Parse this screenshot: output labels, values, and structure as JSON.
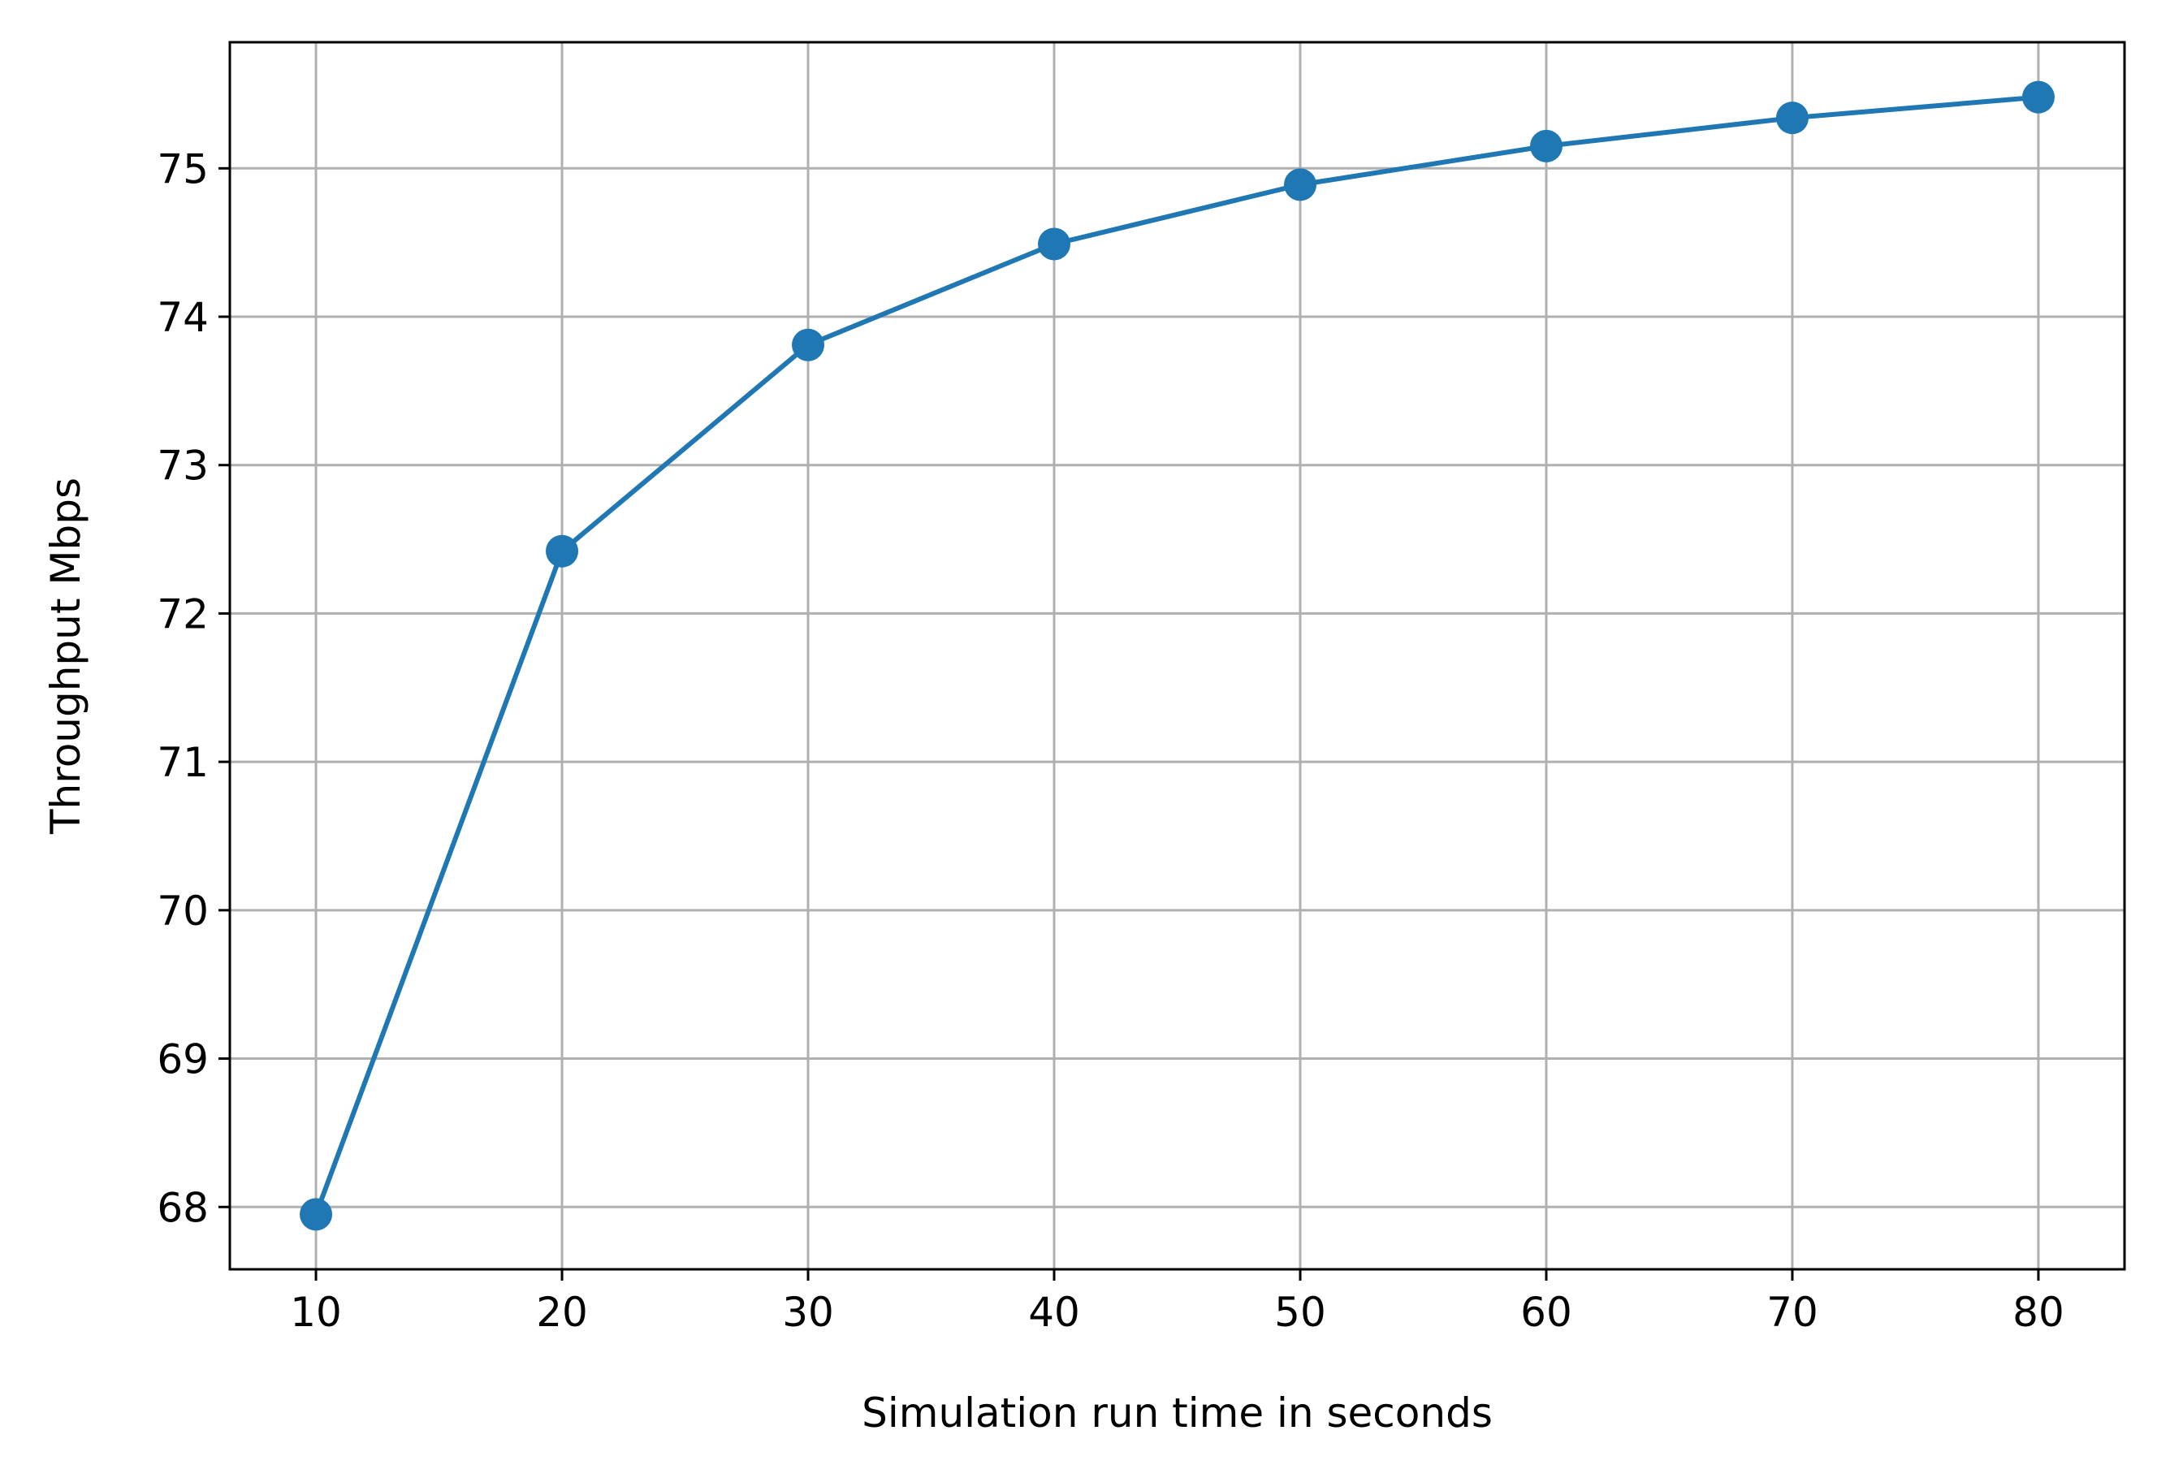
{
  "chart_data": {
    "type": "line",
    "title": "",
    "xlabel": "Simulation run time in seconds",
    "ylabel": "Throughput Mbps",
    "x": [
      10,
      20,
      30,
      40,
      50,
      60,
      70,
      80
    ],
    "series": [
      {
        "values": [
          67.95,
          72.42,
          73.81,
          74.49,
          74.89,
          75.15,
          75.34,
          75.48
        ],
        "color": "#1f77b4",
        "marker": "circle"
      }
    ],
    "xticks": [
      10,
      20,
      30,
      40,
      50,
      60,
      70,
      80
    ],
    "yticks": [
      68,
      69,
      70,
      71,
      72,
      73,
      74,
      75
    ],
    "xlim": [
      6.5,
      83.5
    ],
    "ylim": [
      67.58,
      75.85
    ],
    "grid": true,
    "grid_color": "#b0b0b0"
  }
}
